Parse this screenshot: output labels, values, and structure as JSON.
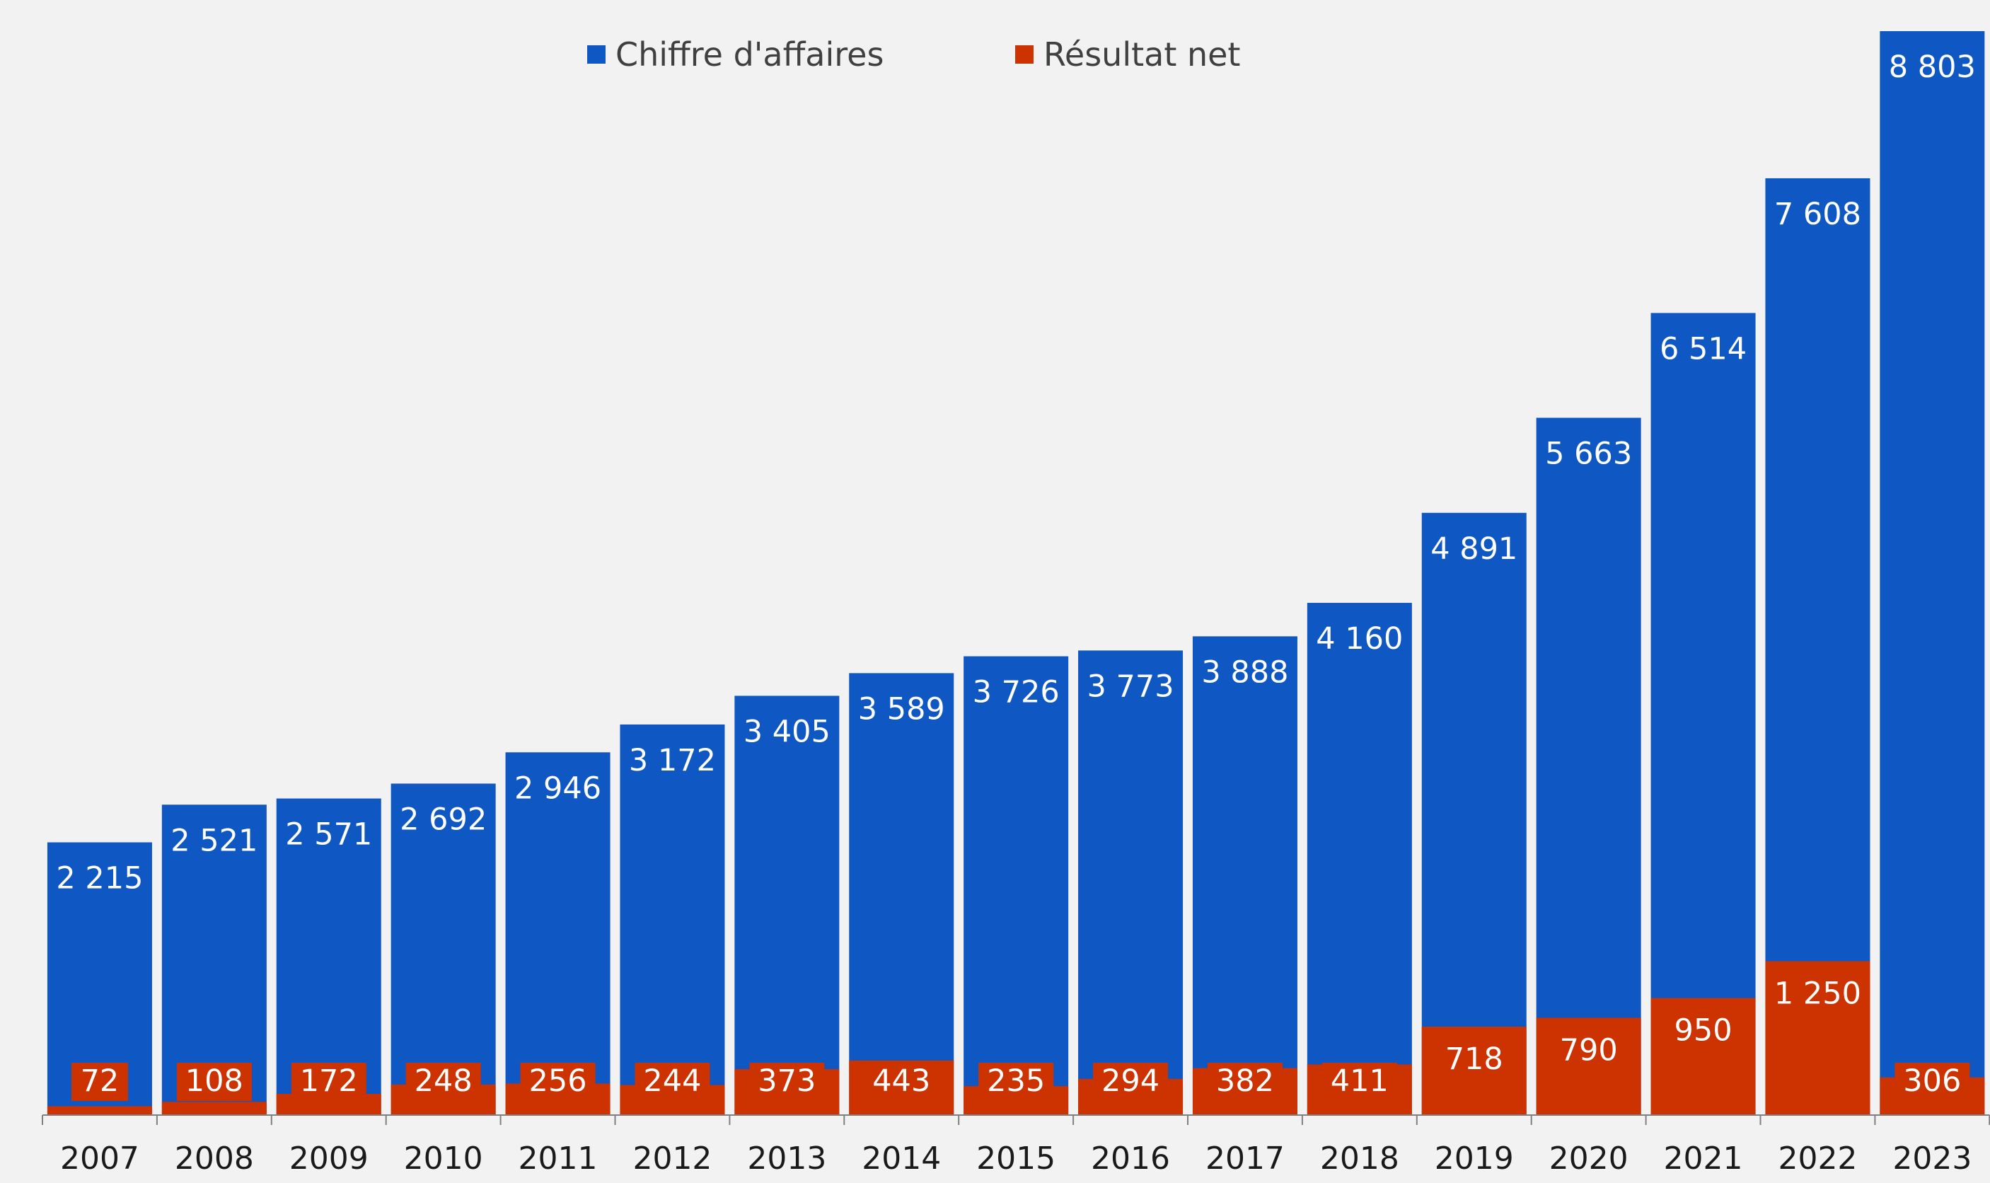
{
  "colors": {
    "background": "#f2f2f2",
    "revenue": "#0f57c3",
    "net_income": "#cc3300",
    "axis": "#808080"
  },
  "chart_data": {
    "type": "bar",
    "categories": [
      "2007",
      "2008",
      "2009",
      "2010",
      "2011",
      "2012",
      "2013",
      "2014",
      "2015",
      "2016",
      "2017",
      "2018",
      "2019",
      "2020",
      "2021",
      "2022",
      "2023"
    ],
    "series": [
      {
        "name": "Chiffre d'affaires",
        "values": [
          2215,
          2521,
          2571,
          2692,
          2946,
          3172,
          3405,
          3589,
          3726,
          3773,
          3888,
          4160,
          4891,
          5663,
          6514,
          7608,
          8803
        ],
        "labels": [
          "2 215",
          "2 521",
          "2 571",
          "2 692",
          "2 946",
          "3 172",
          "3 405",
          "3 589",
          "3 726",
          "3 773",
          "3 888",
          "4 160",
          "4 891",
          "5 663",
          "6 514",
          "7 608",
          "8 803"
        ]
      },
      {
        "name": "Résultat net",
        "values": [
          72,
          108,
          172,
          248,
          256,
          244,
          373,
          443,
          235,
          294,
          382,
          411,
          718,
          790,
          950,
          1250,
          306
        ],
        "labels": [
          "72",
          "108",
          "172",
          "248",
          "256",
          "244",
          "373",
          "443",
          "235",
          "294",
          "382",
          "411",
          "718",
          "790",
          "950",
          "1 250",
          "306"
        ]
      }
    ],
    "title": "",
    "xlabel": "",
    "ylabel": "",
    "ylim": [
      0,
      8803
    ],
    "grid": false,
    "legend_position": "top-center",
    "overlapping_bars": true
  }
}
